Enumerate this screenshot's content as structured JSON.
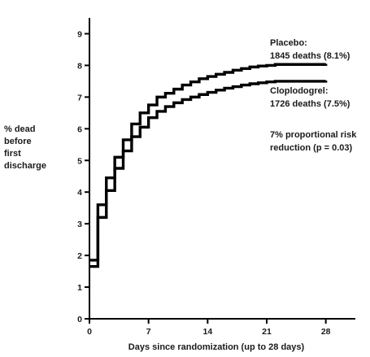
{
  "chart_data": {
    "type": "line",
    "title": "",
    "xlabel": "Days since randomization (up to 28 days)",
    "ylabel": [
      "% dead",
      "before",
      "first",
      "discharge"
    ],
    "xlim": [
      0,
      31.5
    ],
    "ylim": [
      0,
      9.5
    ],
    "x_ticks": [
      0,
      7,
      14,
      21,
      28
    ],
    "y_ticks": [
      0,
      1,
      2,
      3,
      4,
      5,
      6,
      7,
      8,
      9
    ],
    "step": true,
    "series": [
      {
        "name": "Placebo",
        "x": [
          0,
          1,
          2,
          3,
          4,
          5,
          6,
          7,
          8,
          9,
          10,
          11,
          12,
          13,
          14,
          15,
          16,
          17,
          18,
          19,
          20,
          21,
          22,
          28
        ],
        "y": [
          1.85,
          3.6,
          4.45,
          5.1,
          5.65,
          6.15,
          6.5,
          6.75,
          7.0,
          7.12,
          7.25,
          7.38,
          7.48,
          7.58,
          7.65,
          7.72,
          7.78,
          7.85,
          7.9,
          7.95,
          7.98,
          8.0,
          8.03,
          8.05
        ]
      },
      {
        "name": "Cloplodogrel",
        "x": [
          0,
          1,
          2,
          3,
          4,
          5,
          6,
          7,
          8,
          9,
          10,
          11,
          12,
          13,
          14,
          15,
          16,
          17,
          18,
          19,
          20,
          21,
          22,
          28
        ],
        "y": [
          1.65,
          3.2,
          4.05,
          4.75,
          5.3,
          5.75,
          6.05,
          6.35,
          6.55,
          6.7,
          6.82,
          6.92,
          7.0,
          7.08,
          7.15,
          7.22,
          7.28,
          7.33,
          7.38,
          7.42,
          7.45,
          7.48,
          7.5,
          7.52
        ]
      }
    ],
    "annotations": [
      [
        "Placebo:",
        "1845 deaths (8.1%)"
      ],
      [
        "Cloplodogrel:",
        "1726 deaths (7.5%)"
      ],
      [
        "7% proportional risk",
        "reduction  (p = 0.03)"
      ]
    ]
  }
}
